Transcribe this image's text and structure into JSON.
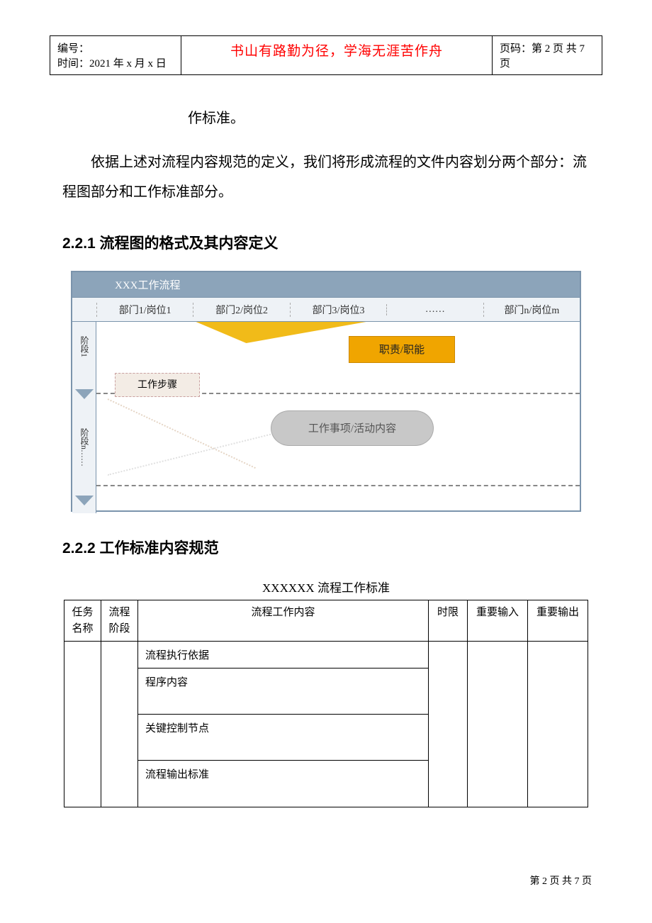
{
  "header": {
    "serial_label": "编号：",
    "date_label": "时间：",
    "date_value": "2021 年 x 月 x 日",
    "quote": "书山有路勤为径，学海无涯苦作舟",
    "page_label": "页码：",
    "page_value": "第 2 页 共 7 页"
  },
  "body": {
    "line_top": "作标准。",
    "para1": "依据上述对流程内容规范的定义，我们将形成流程的文件内容划分两个部分：流程图部分和工作标准部分。"
  },
  "section221": "2.2.1 流程图的格式及其内容定义",
  "flowchart": {
    "title": "XXX工作流程",
    "columns": [
      "部门1/岗位1",
      "部门2/岗位2",
      "部门3/岗位3",
      "……",
      "部门n/岗位m"
    ],
    "phase1": "阶段1",
    "phasen": "阶段n……",
    "step_box": "工作步骤",
    "resp_box": "职责/职能",
    "oval_box": "工作事项/活动内容",
    "colors": {
      "border": "#7b94ac",
      "header_bg": "#8ca4ba",
      "col_bg": "#eef2f6",
      "step_bg": "#f3ece5",
      "resp_bg": "#f0a500",
      "oval_bg": "#c8c8c8"
    }
  },
  "section222": "2.2.2 工作标准内容规范",
  "std": {
    "caption": "XXXXXX 流程工作标准",
    "headers": {
      "task": "任务\n名称",
      "phase": "流程\n阶段",
      "content": "流程工作内容",
      "limit": "时限",
      "input": "重要输入",
      "output": "重要输出"
    },
    "content_rows": [
      "流程执行依据",
      "程序内容",
      "关键控制节点",
      "流程输出标准"
    ]
  },
  "footer": "第 2 页 共 7 页"
}
